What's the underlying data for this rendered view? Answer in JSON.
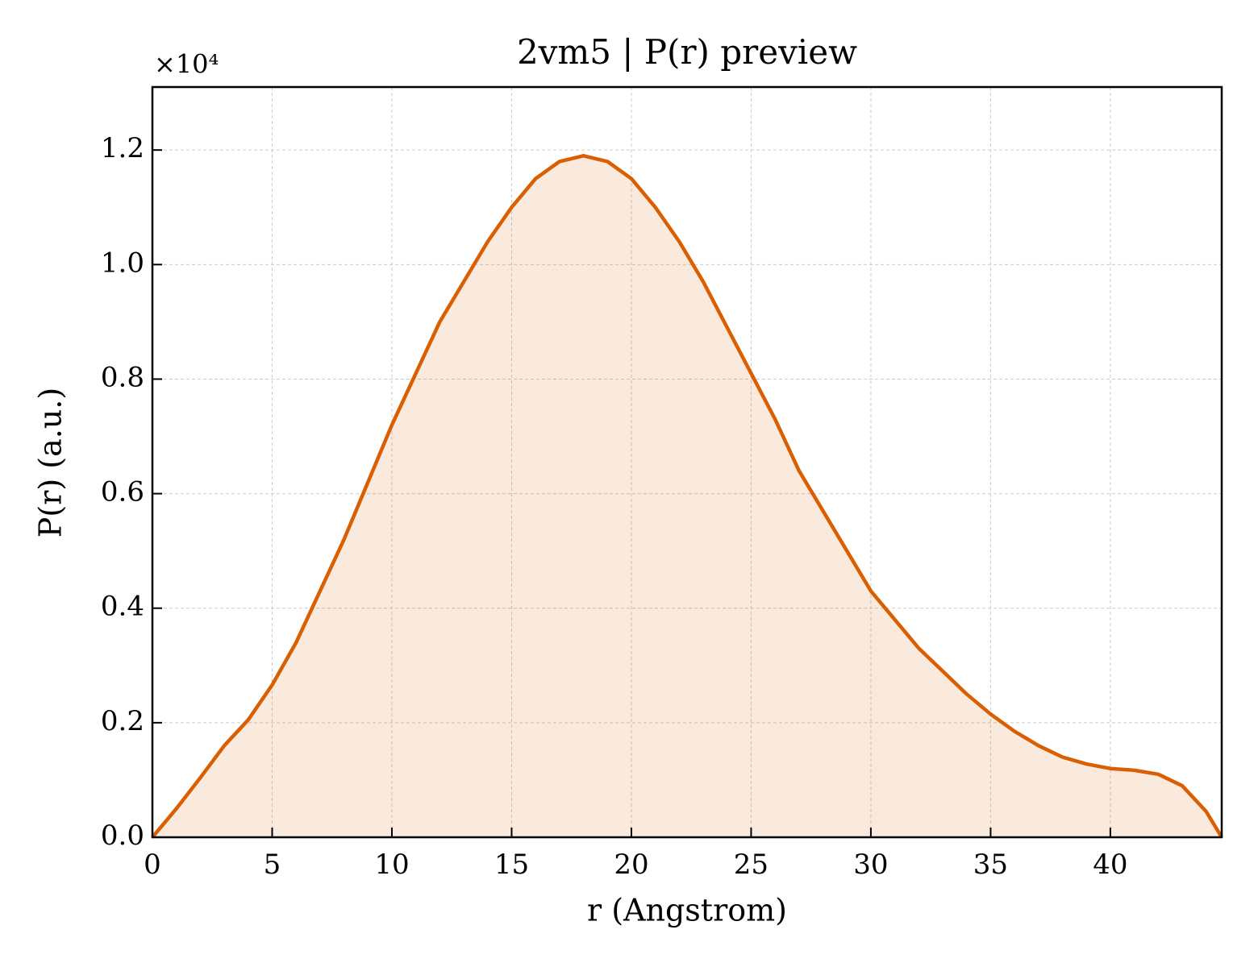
{
  "chart_data": {
    "type": "line",
    "title": "2vm5 | P(r) preview",
    "x_label": "r (Angstrom)",
    "y_label": "P(r) (a.u.)",
    "y_offset_label": "×10⁴",
    "color": "#d95f02",
    "fill": true,
    "grid": true,
    "x": [
      0,
      1,
      2,
      3,
      4,
      5,
      6,
      7,
      8,
      9,
      10,
      11,
      12,
      13,
      14,
      15,
      16,
      17,
      18,
      19,
      20,
      21,
      22,
      23,
      24,
      25,
      26,
      27,
      28,
      29,
      30,
      31,
      32,
      33,
      34,
      35,
      36,
      37,
      38,
      39,
      40,
      41,
      42,
      43,
      44,
      44.65
    ],
    "values": [
      0,
      0.05,
      0.104,
      0.16,
      0.205,
      0.266,
      0.34,
      0.43,
      0.52,
      0.62,
      0.72,
      0.81,
      0.9,
      0.97,
      1.04,
      1.1,
      1.15,
      1.18,
      1.19,
      1.18,
      1.15,
      1.1,
      1.04,
      0.97,
      0.89,
      0.81,
      0.73,
      0.64,
      0.57,
      0.5,
      0.43,
      0.38,
      0.33,
      0.29,
      0.25,
      0.215,
      0.185,
      0.16,
      0.14,
      0.128,
      0.12,
      0.117,
      0.11,
      0.09,
      0.045,
      0
    ],
    "xlim": [
      0,
      44.65
    ],
    "ylim": [
      0,
      1.31
    ],
    "xticks": [
      0,
      5,
      10,
      15,
      20,
      25,
      30,
      35,
      40
    ],
    "yticks": [
      {
        "value": 0,
        "label": "0.0"
      },
      0.2,
      0.4,
      0.6,
      0.8,
      {
        "value": 1,
        "label": "1.0"
      },
      1.2
    ]
  }
}
